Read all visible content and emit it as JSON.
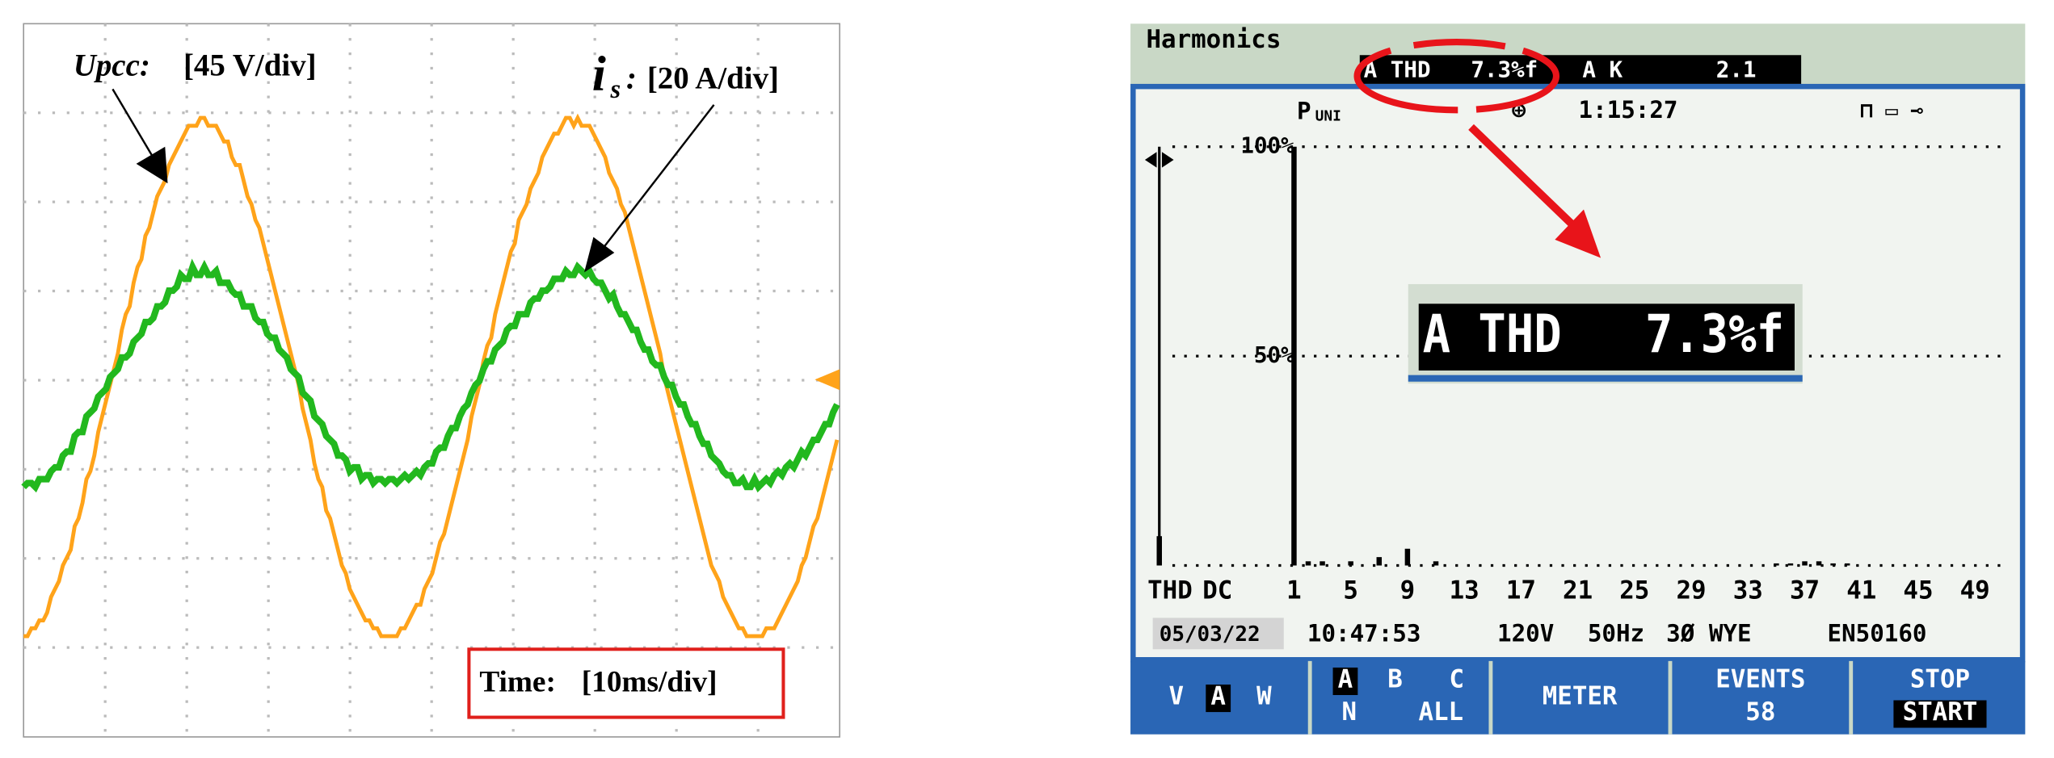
{
  "scope": {
    "upcc_label": "Upcc:",
    "upcc_scale": "[45 V/div]",
    "is_label": "i",
    "is_sub": "s",
    "is_colon": ":",
    "is_scale": "[20 A/div]",
    "time_label": "Time:",
    "time_scale": "[10ms/div]"
  },
  "analyzer": {
    "title": "Harmonics",
    "header_thd": "A THD   7.3%f",
    "header_k": "A K",
    "header_k_value": "2.1",
    "mode": "P",
    "mode_sub": "UNI",
    "elapsed": "1:15:27",
    "zoom_thd": "A THD   7.3%f",
    "footer": {
      "date": "05/03/22",
      "time": "10:47:53",
      "voltage": "120V",
      "frequency": "50Hz",
      "config": "3Ø WYE",
      "standard": "EN50160"
    },
    "softkeys": [
      [
        "V",
        "A",
        "W"
      ],
      [
        "A",
        "B",
        "C",
        "N",
        "ALL"
      ],
      [
        "METER"
      ],
      [
        "EVENTS",
        "58"
      ],
      [
        "STOP",
        "START"
      ]
    ]
  },
  "chart_data": {
    "type": "bar",
    "color": "#000000",
    "categories": [
      "THD",
      "DC",
      "1",
      null,
      null,
      null,
      "5",
      null,
      null,
      null,
      "9",
      null,
      null,
      null,
      "13",
      null,
      null,
      null,
      "17",
      null,
      null,
      null,
      "21",
      null,
      null,
      null,
      "25",
      null,
      null,
      null,
      "29",
      null,
      null,
      null,
      "33",
      null,
      null,
      null,
      "37",
      null,
      null,
      null,
      "41",
      null,
      null,
      null,
      "45",
      null,
      null,
      null,
      "49",
      null
    ],
    "values": [
      7,
      0,
      100,
      1,
      1,
      0,
      1,
      0,
      2,
      0,
      4,
      0,
      1,
      0,
      0,
      0,
      0,
      0,
      0,
      0,
      0,
      0,
      0,
      0,
      0,
      0,
      0,
      0,
      0,
      0,
      0,
      0,
      0,
      0,
      0,
      0,
      0.5,
      0.5,
      1,
      1,
      0.5,
      0.5,
      0,
      0,
      0,
      0,
      0,
      0,
      0,
      0,
      0,
      0
    ],
    "ylim": [
      0,
      100
    ],
    "yticks": [
      {
        "value": 50,
        "label": "50%"
      },
      {
        "value": 100,
        "label": "100%"
      }
    ],
    "grid": true
  }
}
